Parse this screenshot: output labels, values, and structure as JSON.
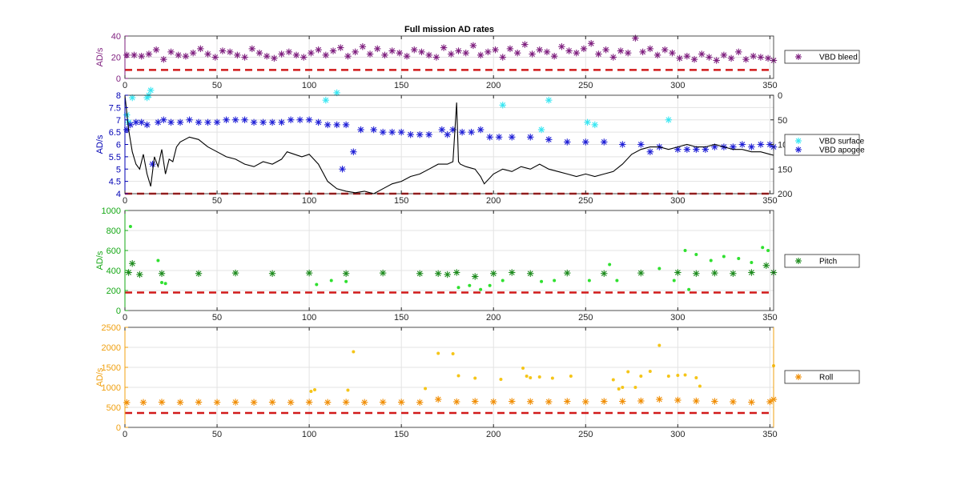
{
  "title": "Full mission AD rates",
  "chart_data": [
    {
      "type": "scatter",
      "ylabel": "AD/s",
      "xlim": [
        0,
        352
      ],
      "ylim": [
        0,
        40
      ],
      "xticks": [
        0,
        50,
        100,
        150,
        200,
        250,
        300,
        350
      ],
      "yticks": [
        0,
        20,
        40
      ],
      "axis_color": "#7e1e7e",
      "grid": true,
      "legend_position": "right",
      "threshold": 8,
      "series": [
        {
          "name": "VBD bleed",
          "marker": "asterisk",
          "color": "#7e1e7e",
          "x": [
            1,
            5,
            9,
            13,
            17,
            21,
            25,
            29,
            33,
            37,
            41,
            45,
            49,
            53,
            57,
            61,
            65,
            69,
            73,
            77,
            81,
            85,
            89,
            93,
            97,
            101,
            105,
            109,
            113,
            117,
            121,
            125,
            129,
            133,
            137,
            141,
            145,
            149,
            153,
            157,
            161,
            165,
            169,
            173,
            177,
            181,
            185,
            189,
            193,
            197,
            201,
            205,
            209,
            213,
            217,
            221,
            225,
            229,
            233,
            237,
            241,
            245,
            249,
            253,
            257,
            261,
            265,
            269,
            273,
            277,
            281,
            285,
            289,
            293,
            297,
            301,
            305,
            309,
            313,
            317,
            321,
            325,
            329,
            333,
            337,
            341,
            345,
            349,
            352
          ],
          "y": [
            22,
            22,
            21,
            23,
            27,
            18,
            25,
            22,
            21,
            24,
            28,
            23,
            20,
            26,
            25,
            22,
            20,
            28,
            24,
            21,
            19,
            23,
            25,
            22,
            20,
            24,
            27,
            22,
            26,
            29,
            21,
            25,
            30,
            23,
            28,
            22,
            26,
            24,
            21,
            27,
            25,
            22,
            20,
            29,
            23,
            26,
            24,
            31,
            22,
            25,
            27,
            20,
            28,
            24,
            32,
            23,
            27,
            25,
            21,
            30,
            26,
            24,
            28,
            33,
            23,
            27,
            20,
            26,
            24,
            38,
            25,
            28,
            22,
            27,
            24,
            19,
            21,
            18,
            23,
            20,
            17,
            22,
            19,
            25,
            18,
            21,
            20,
            19,
            17
          ]
        }
      ]
    },
    {
      "type": "scatter",
      "ylabel": "AD/s",
      "xlim": [
        0,
        352
      ],
      "ylim": [
        4,
        8
      ],
      "xticks": [
        0,
        50,
        100,
        150,
        200,
        250,
        300,
        350
      ],
      "yticks": [
        4,
        4.5,
        5,
        5.5,
        6,
        6.5,
        7,
        7.5,
        8
      ],
      "y2lim": [
        200,
        0
      ],
      "y2ticks": [
        0,
        50,
        100,
        150,
        200
      ],
      "axis_color": "#0000b4",
      "grid": true,
      "legend_position": "right",
      "threshold": 4,
      "series": [
        {
          "name": "VBD surface",
          "marker": "asterisk",
          "color": "#35e6f2",
          "x": [
            1,
            2,
            4,
            12,
            13,
            14,
            109,
            115,
            205,
            230,
            226,
            251,
            255,
            295
          ],
          "y": [
            7.2,
            6.9,
            7.9,
            7.9,
            8.0,
            8.2,
            7.8,
            8.1,
            7.6,
            7.8,
            6.6,
            6.9,
            6.8,
            7.0
          ]
        },
        {
          "name": "VBD apogee",
          "marker": "asterisk",
          "color": "#1f1fd6",
          "x": [
            1,
            3,
            6,
            9,
            12,
            15,
            18,
            21,
            25,
            30,
            35,
            40,
            45,
            50,
            55,
            60,
            65,
            70,
            75,
            80,
            85,
            90,
            95,
            100,
            105,
            110,
            115,
            118,
            120,
            124,
            128,
            135,
            140,
            145,
            150,
            155,
            160,
            165,
            172,
            175,
            178,
            183,
            188,
            193,
            198,
            203,
            210,
            220,
            230,
            240,
            250,
            260,
            270,
            280,
            285,
            290,
            300,
            305,
            310,
            315,
            320,
            325,
            330,
            335,
            340,
            345,
            350,
            352
          ],
          "y": [
            6.6,
            6.8,
            6.9,
            6.9,
            6.8,
            5.2,
            6.9,
            7.0,
            6.9,
            6.9,
            7.0,
            6.9,
            6.9,
            6.9,
            7.0,
            7.0,
            7.0,
            6.9,
            6.9,
            6.9,
            6.9,
            7.0,
            7.0,
            7.0,
            6.9,
            6.8,
            6.8,
            5.0,
            6.8,
            5.7,
            6.6,
            6.6,
            6.5,
            6.5,
            6.5,
            6.4,
            6.4,
            6.4,
            6.6,
            6.4,
            6.6,
            6.5,
            6.5,
            6.6,
            6.3,
            6.3,
            6.3,
            6.3,
            6.2,
            6.1,
            6.1,
            6.1,
            6.0,
            6.0,
            5.7,
            5.9,
            5.8,
            5.8,
            5.8,
            5.8,
            5.9,
            5.9,
            5.9,
            6.0,
            5.9,
            6.0,
            6.0,
            5.9
          ]
        },
        {
          "name": "",
          "marker": "line",
          "color": "#000000",
          "axis": "right",
          "x": [
            0,
            2,
            4,
            6,
            8,
            10,
            12,
            14,
            16,
            18,
            20,
            22,
            24,
            26,
            28,
            30,
            35,
            40,
            45,
            50,
            55,
            60,
            65,
            70,
            75,
            80,
            85,
            88,
            92,
            96,
            100,
            105,
            110,
            115,
            120,
            125,
            130,
            135,
            140,
            145,
            150,
            155,
            160,
            165,
            170,
            175,
            178,
            180,
            181,
            182,
            185,
            190,
            193,
            195,
            200,
            205,
            210,
            215,
            220,
            225,
            230,
            235,
            240,
            245,
            250,
            255,
            260,
            265,
            270,
            275,
            280,
            285,
            290,
            295,
            300,
            305,
            310,
            315,
            320,
            325,
            330,
            335,
            340,
            345,
            350,
            352
          ],
          "y": [
            0,
            70,
            115,
            140,
            150,
            120,
            160,
            185,
            125,
            145,
            110,
            160,
            130,
            135,
            105,
            95,
            85,
            90,
            105,
            115,
            125,
            130,
            140,
            145,
            135,
            140,
            130,
            115,
            120,
            125,
            120,
            140,
            175,
            190,
            195,
            198,
            195,
            200,
            190,
            180,
            175,
            165,
            160,
            150,
            140,
            140,
            135,
            15,
            135,
            140,
            145,
            150,
            165,
            180,
            160,
            150,
            155,
            145,
            150,
            140,
            150,
            155,
            160,
            165,
            160,
            165,
            160,
            155,
            140,
            120,
            110,
            105,
            105,
            110,
            105,
            100,
            105,
            105,
            100,
            105,
            110,
            110,
            115,
            115,
            120,
            122
          ]
        }
      ]
    },
    {
      "type": "scatter",
      "ylabel": "AD/s",
      "xlim": [
        0,
        352
      ],
      "ylim": [
        0,
        1000
      ],
      "xticks": [
        0,
        50,
        100,
        150,
        200,
        250,
        300,
        350
      ],
      "yticks": [
        0,
        200,
        400,
        600,
        800,
        1000
      ],
      "axis_color": "#15a815",
      "grid": true,
      "legend_position": "right",
      "threshold": 180,
      "series": [
        {
          "name": "Pitch",
          "marker": "asterisk",
          "color": "#1b8a1b",
          "x": [
            2,
            4,
            8,
            20,
            40,
            60,
            80,
            100,
            120,
            140,
            160,
            170,
            175,
            180,
            190,
            200,
            210,
            220,
            240,
            260,
            280,
            300,
            310,
            320,
            330,
            340,
            348,
            352
          ],
          "y": [
            380,
            470,
            360,
            370,
            370,
            375,
            370,
            375,
            370,
            375,
            370,
            370,
            360,
            380,
            340,
            370,
            380,
            370,
            375,
            370,
            375,
            380,
            370,
            375,
            370,
            380,
            450,
            380
          ]
        },
        {
          "name": "",
          "marker": "dot",
          "color": "#2fe02f",
          "x": [
            3,
            18,
            20,
            22,
            104,
            112,
            120,
            181,
            187,
            193,
            198,
            205,
            226,
            233,
            252,
            263,
            267,
            290,
            298,
            304,
            306,
            310,
            318,
            325,
            333,
            340,
            346,
            349
          ],
          "y": [
            840,
            500,
            280,
            270,
            260,
            300,
            290,
            230,
            250,
            210,
            250,
            300,
            290,
            300,
            300,
            460,
            300,
            420,
            300,
            600,
            210,
            560,
            500,
            540,
            520,
            480,
            630,
            600
          ]
        }
      ]
    },
    {
      "type": "scatter",
      "ylabel": "AD/s",
      "xlim": [
        0,
        352
      ],
      "ylim": [
        0,
        2500
      ],
      "xticks": [
        0,
        50,
        100,
        150,
        200,
        250,
        300,
        350
      ],
      "yticks": [
        0,
        500,
        1000,
        1500,
        2000,
        2500
      ],
      "axis_color": "#f0a010",
      "grid": true,
      "legend_position": "right",
      "threshold": 360,
      "series": [
        {
          "name": "Roll",
          "marker": "asterisk",
          "color": "#f08c00",
          "x": [
            1,
            10,
            20,
            30,
            40,
            50,
            60,
            70,
            80,
            90,
            100,
            110,
            120,
            130,
            140,
            150,
            160,
            170,
            180,
            190,
            200,
            210,
            220,
            230,
            240,
            250,
            260,
            270,
            280,
            290,
            300,
            310,
            320,
            330,
            340,
            350,
            352
          ],
          "y": [
            620,
            625,
            630,
            625,
            630,
            625,
            630,
            625,
            630,
            625,
            630,
            625,
            630,
            625,
            630,
            630,
            625,
            700,
            640,
            650,
            640,
            650,
            645,
            640,
            650,
            640,
            650,
            650,
            660,
            700,
            680,
            660,
            650,
            640,
            630,
            640,
            700
          ]
        },
        {
          "name": "",
          "marker": "dot",
          "color": "#f5c518",
          "x": [
            101,
            103,
            121,
            124,
            163,
            170,
            178,
            181,
            190,
            204,
            216,
            218,
            220,
            225,
            232,
            242,
            265,
            268,
            270,
            273,
            277,
            280,
            285,
            290,
            295,
            300,
            304,
            310,
            312,
            352
          ],
          "y": [
            900,
            940,
            930,
            1890,
            970,
            1850,
            1840,
            1290,
            1230,
            1200,
            1480,
            1280,
            1240,
            1260,
            1230,
            1280,
            1190,
            960,
            1000,
            1390,
            1000,
            1280,
            1400,
            2050,
            1280,
            1300,
            1310,
            1240,
            1030,
            1540
          ]
        }
      ]
    }
  ]
}
